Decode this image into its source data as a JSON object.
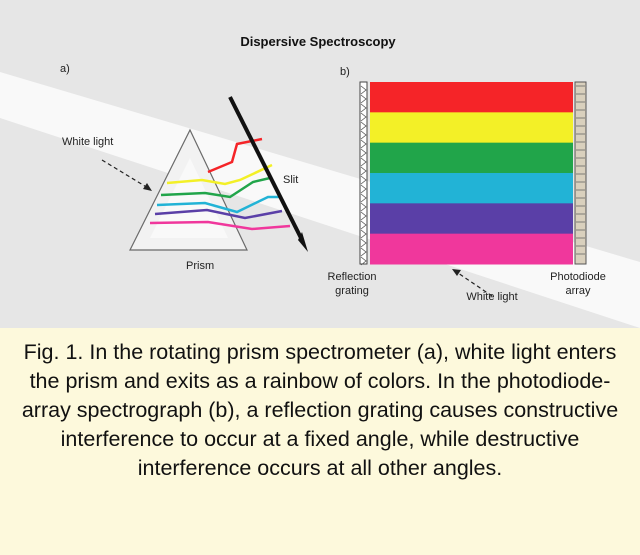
{
  "figure": {
    "title": "Dispersive Spectroscopy",
    "panel_a": {
      "label": "a)",
      "white_light_label": "White light",
      "slit_label": "Slit",
      "prism_label": "Prism"
    },
    "panel_b": {
      "label": "b)",
      "grating_label_line1": "Reflection",
      "grating_label_line2": "grating",
      "white_light_label": "White light",
      "photodiode_label_line1": "Photodiode",
      "photodiode_label_line2": "array",
      "bands": [
        {
          "name": "red",
          "color": "#f52428"
        },
        {
          "name": "yellow",
          "color": "#f3f027"
        },
        {
          "name": "green",
          "color": "#21a54a"
        },
        {
          "name": "cyan",
          "color": "#22b3d6"
        },
        {
          "name": "violet",
          "color": "#5a3fa7"
        },
        {
          "name": "magenta",
          "color": "#f0379c"
        }
      ]
    },
    "colors": {
      "background": "#e6e6e6",
      "light_beam": "#fafafa",
      "prism_fill": "#f2f2f2",
      "caption_background": "#fdf9dc"
    }
  },
  "caption": {
    "text": "Fig. 1. In the rotating prism spectrometer (a), white light enters the prism and exits as a rainbow of colors. In the photodiode-array spectrograph (b), a reflection grating causes constructive interference to occur at a fixed angle, while destructive interference occurs at all other angles."
  }
}
